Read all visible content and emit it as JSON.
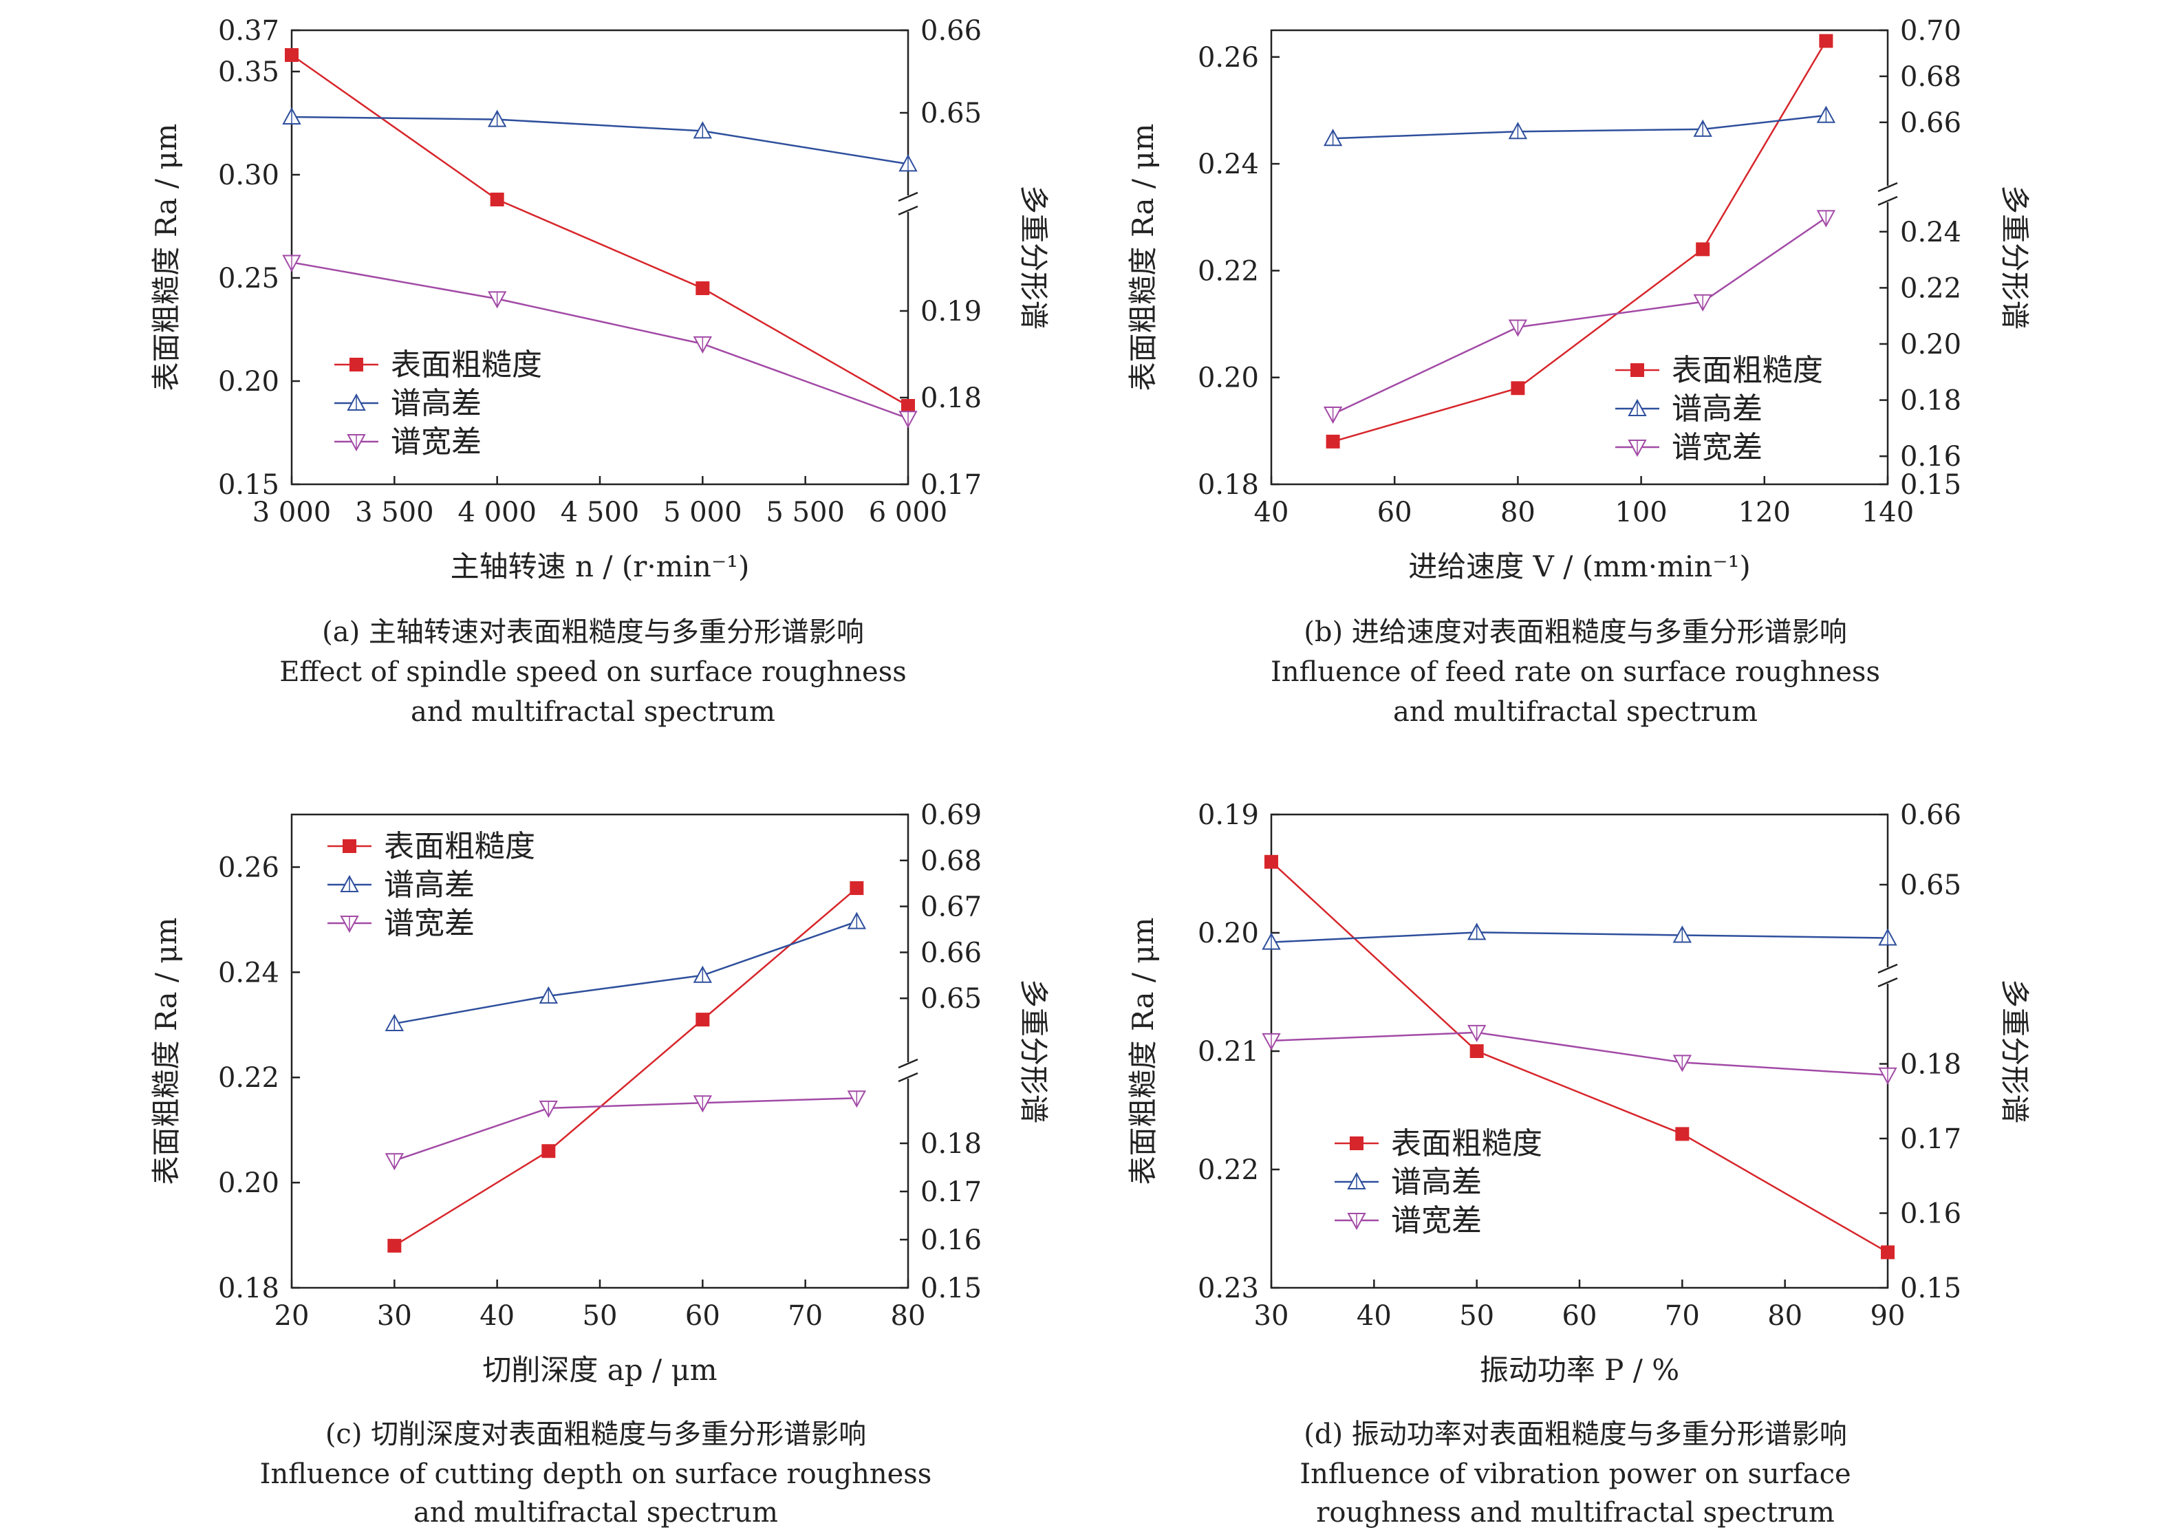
{
  "colors": {
    "roughness": "#d7262b",
    "height": "#2e4f9c",
    "width": "#a24aa6",
    "axis": "#222222"
  },
  "panels": [
    {
      "id": "a",
      "caption": {
        "cn": "(a) 主轴转速对表面粗糙度与多重分形谱影响",
        "en1": "Effect of spindle speed on surface roughness",
        "en2": "and multifractal spectrum"
      },
      "xlabel": "主轴转速 n / (r·min⁻¹)",
      "ylabel_left": "表面粗糙度 Ra / μm",
      "ylabel_right": "多重分形谱",
      "legend": [
        "表面粗糙度",
        "谱高差",
        "谱宽差"
      ],
      "legend_pos": "left-middle",
      "x_ticks": [
        "3 000",
        "3 500",
        "4 000",
        "4 500",
        "5 000",
        "5 500",
        "6 000"
      ],
      "left_ticks": [
        "0.37",
        "0.35",
        "0.30",
        "0.25",
        "0.20",
        "0.15"
      ],
      "right_upper_ticks": [
        "0.66",
        "0.65"
      ],
      "right_lower_ticks": [
        "0.19",
        "0.18",
        "0.17"
      ]
    },
    {
      "id": "b",
      "caption": {
        "cn": "(b) 进给速度对表面粗糙度与多重分形谱影响",
        "en1": "Influence of feed rate on surface roughness",
        "en2": "and multifractal spectrum"
      },
      "xlabel": "进给速度 V / (mm·min⁻¹)",
      "ylabel_left": "表面粗糙度 Ra / μm",
      "ylabel_right": "多重分形谱",
      "legend": [
        "表面粗糙度",
        "谱高差",
        "谱宽差"
      ],
      "legend_pos": "right-lower",
      "x_ticks": [
        "40",
        "60",
        "80",
        "100",
        "120",
        "140"
      ],
      "left_ticks": [
        "0.26",
        "0.24",
        "0.22",
        "0.20",
        "0.18"
      ],
      "right_upper_ticks": [
        "0.70",
        "0.68",
        "0.66"
      ],
      "right_lower_ticks": [
        "0.24",
        "0.22",
        "0.20",
        "0.18",
        "0.16",
        "0.15"
      ]
    },
    {
      "id": "c",
      "caption": {
        "cn": "(c) 切削深度对表面粗糙度与多重分形谱影响",
        "en1": "Influence of cutting depth on surface roughness",
        "en2": "and multifractal spectrum"
      },
      "xlabel": "切削深度 ap / μm",
      "ylabel_left": "表面粗糙度 Ra / μm",
      "ylabel_right": "多重分形谱",
      "legend": [
        "表面粗糙度",
        "谱高差",
        "谱宽差"
      ],
      "legend_pos": "top-left",
      "x_ticks": [
        "20",
        "30",
        "40",
        "50",
        "60",
        "70",
        "80"
      ],
      "left_ticks": [
        "0.26",
        "0.24",
        "0.22",
        "0.20",
        "0.18"
      ],
      "right_upper_ticks": [
        "0.69",
        "0.68",
        "0.67",
        "0.66",
        "0.65"
      ],
      "right_lower_ticks": [
        "0.18",
        "0.17",
        "0.16",
        "0.15"
      ]
    },
    {
      "id": "d",
      "caption": {
        "cn": "(d) 振动功率对表面粗糙度与多重分形谱影响",
        "en1": "Influence of vibration power on surface",
        "en2": "roughness and multifractal spectrum"
      },
      "xlabel": "振动功率 P / %",
      "ylabel_left": "表面粗糙度 Ra / μm",
      "ylabel_right": "多重分形谱",
      "legend": [
        "表面粗糙度",
        "谱高差",
        "谱宽差"
      ],
      "legend_pos": "bottom-left",
      "x_ticks": [
        "30",
        "40",
        "50",
        "60",
        "70",
        "80",
        "90"
      ],
      "left_ticks": [
        "0.19",
        "0.20",
        "0.21",
        "0.22",
        "0.23"
      ],
      "right_upper_ticks": [
        "0.66",
        "0.65"
      ],
      "right_lower_ticks": [
        "0.18",
        "0.17",
        "0.16",
        "0.15"
      ]
    }
  ],
  "chart_data": [
    {
      "type": "line",
      "title": "(a) 主轴转速对表面粗糙度与多重分形谱影响",
      "xlabel": "主轴转速 n / (r·min⁻¹)",
      "ylabel": "表面粗糙度 Ra / μm",
      "y2label": "多重分形谱",
      "x": [
        3000,
        4000,
        5000,
        6000
      ],
      "xlim": [
        3000,
        6000
      ],
      "ylim": [
        0.15,
        0.37
      ],
      "y2_broken_axis": {
        "upper": [
          0.642,
          0.66
        ],
        "lower": [
          0.17,
          0.2
        ]
      },
      "series": [
        {
          "name": "表面粗糙度",
          "axis": "left",
          "marker": "square",
          "values": [
            0.358,
            0.288,
            0.245,
            0.188
          ]
        },
        {
          "name": "谱高差",
          "axis": "right",
          "marker": "triangle-up",
          "values": [
            0.6495,
            0.6492,
            0.6478,
            0.6438
          ]
        },
        {
          "name": "谱宽差",
          "axis": "right",
          "marker": "triangle-down",
          "values": [
            0.1956,
            0.1914,
            0.1862,
            0.1776
          ]
        }
      ],
      "legend_position": "left-middle"
    },
    {
      "type": "line",
      "title": "(b) 进给速度对表面粗糙度与多重分形谱影响",
      "xlabel": "进给速度 V / (mm·min⁻¹)",
      "ylabel": "表面粗糙度 Ra / μm",
      "y2label": "多重分形谱",
      "x": [
        50,
        80,
        110,
        130
      ],
      "xlim": [
        40,
        140
      ],
      "ylim": [
        0.18,
        0.265
      ],
      "y2_broken_axis": {
        "upper": [
          0.645,
          0.7
        ],
        "lower": [
          0.15,
          0.25
        ]
      },
      "series": [
        {
          "name": "表面粗糙度",
          "axis": "left",
          "marker": "square",
          "values": [
            0.188,
            0.198,
            0.224,
            0.263
          ]
        },
        {
          "name": "谱高差",
          "axis": "right",
          "marker": "triangle-up",
          "values": [
            0.653,
            0.656,
            0.657,
            0.663
          ]
        },
        {
          "name": "谱宽差",
          "axis": "right",
          "marker": "triangle-down",
          "values": [
            0.175,
            0.206,
            0.215,
            0.245
          ]
        }
      ],
      "legend_position": "right-lower"
    },
    {
      "type": "line",
      "title": "(c) 切削深度对表面粗糙度与多重分形谱影响",
      "xlabel": "切削深度 ap / μm",
      "ylabel": "表面粗糙度 Ra / μm",
      "y2label": "多重分形谱",
      "x": [
        30,
        45,
        60,
        75
      ],
      "xlim": [
        20,
        80
      ],
      "ylim": [
        0.18,
        0.27
      ],
      "y2_broken_axis": {
        "upper": [
          0.64,
          0.69
        ],
        "lower": [
          0.15,
          0.19
        ]
      },
      "series": [
        {
          "name": "表面粗糙度",
          "axis": "left",
          "marker": "square",
          "values": [
            0.188,
            0.206,
            0.231,
            0.256
          ]
        },
        {
          "name": "谱高差",
          "axis": "right",
          "marker": "triangle-up",
          "values": [
            0.6445,
            0.6505,
            0.655,
            0.6667
          ]
        },
        {
          "name": "谱宽差",
          "axis": "right",
          "marker": "triangle-down",
          "values": [
            0.1764,
            0.1873,
            0.1884,
            0.1894
          ]
        }
      ],
      "legend_position": "top-left"
    },
    {
      "type": "line",
      "title": "(d) 振动功率对表面粗糙度与多重分形谱影响",
      "xlabel": "振动功率 P / %",
      "ylabel": "表面粗糙度 Ra / μm",
      "y2label": "多重分形谱",
      "x": [
        30,
        50,
        70,
        90
      ],
      "xlim": [
        30,
        90
      ],
      "ylim": [
        0.19,
        0.23
      ],
      "y_reversed": true,
      "y2_broken_axis": {
        "upper": [
          0.64,
          0.66
        ],
        "lower": [
          0.15,
          0.19
        ]
      },
      "series": [
        {
          "name": "表面粗糙度",
          "axis": "left",
          "marker": "square",
          "values": [
            0.194,
            0.21,
            0.217,
            0.227
          ]
        },
        {
          "name": "谱高差",
          "axis": "right",
          "marker": "triangle-up",
          "values": [
            0.6418,
            0.6432,
            0.6428,
            0.6424
          ]
        },
        {
          "name": "谱宽差",
          "axis": "right",
          "marker": "triangle-down",
          "values": [
            0.1831,
            0.1842,
            0.1802,
            0.1785
          ]
        }
      ],
      "legend_position": "bottom-left"
    }
  ]
}
